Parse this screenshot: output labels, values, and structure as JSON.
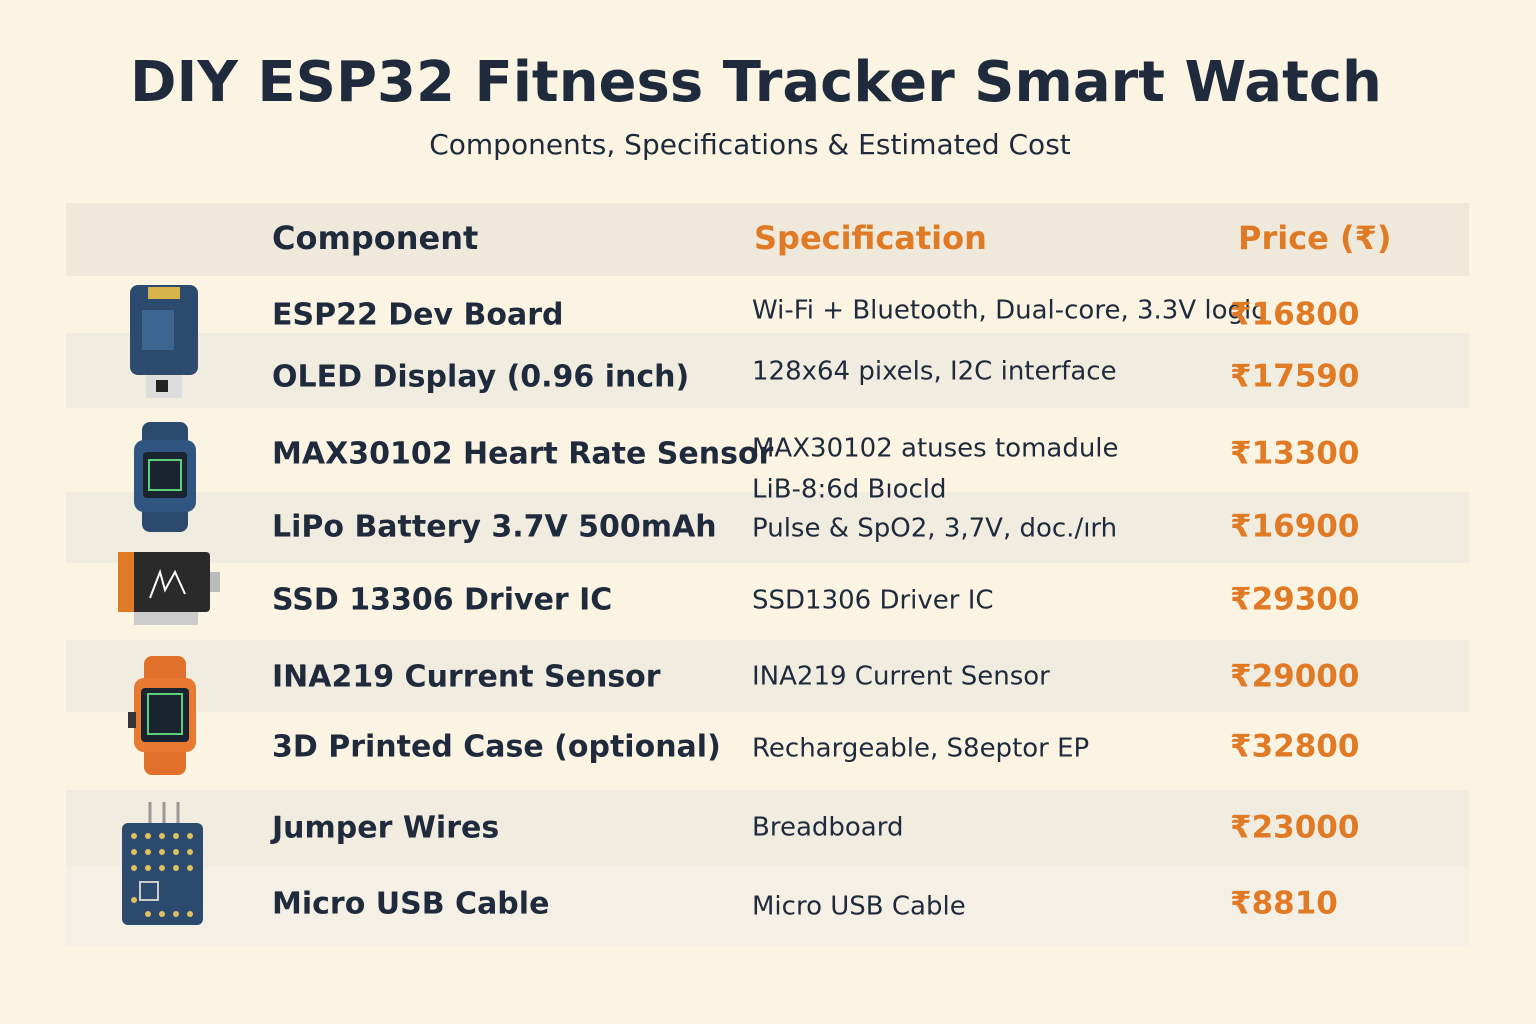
{
  "header": {
    "title": "DIY ESP32 Fitness Tracker Smart Watch",
    "subtitle": "Components, Specifications & Estimated Cost"
  },
  "table": {
    "columns": [
      "Component",
      "Specification",
      "Price (₹)"
    ],
    "rows": [
      {
        "component": "ESP22 Dev Board",
        "spec": [
          "Wi-Fi + Bluetooth, Dual-core, 3.3V logic"
        ],
        "price": "₹16800"
      },
      {
        "component": "OLED Display (0.96 inch)",
        "spec": [
          "128x64 pixels, I2C interface"
        ],
        "price": "₹17590"
      },
      {
        "component": "MAX30102 Heart Rate Sensor",
        "spec": [
          "MAX30102 atuses tomadule",
          "LiB-8:6d Bıocld"
        ],
        "price": "₹13300"
      },
      {
        "component": "LiPo Battery 3.7V 500mAh",
        "spec": [
          "Pulse & SpO2, 3,7V, doc./ırh"
        ],
        "price": "₹16900"
      },
      {
        "component": "SSD 13306 Driver IC",
        "spec": [
          "SSD1306 Driver IC"
        ],
        "price": "₹29300"
      },
      {
        "component": "INA219 Current Sensor",
        "spec": [
          "INA219 Current Sensor"
        ],
        "price": "₹29000"
      },
      {
        "component": "3D Printed Case (optional)",
        "spec": [
          "Rechargeable, S8eptor EP"
        ],
        "price": "₹32800"
      },
      {
        "component": "Jumper Wires",
        "spec": [
          "Breadboard"
        ],
        "price": "₹23000"
      },
      {
        "component": "Micro USB Cable",
        "spec": [
          "Micro USB Cable"
        ],
        "price": "₹8810"
      }
    ]
  }
}
